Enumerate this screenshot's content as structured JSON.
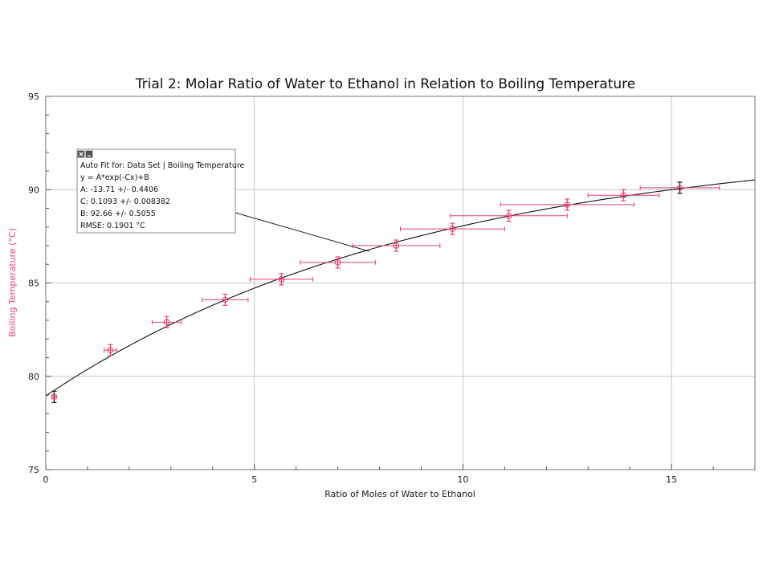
{
  "chart_data": {
    "type": "scatter",
    "title": "Trial 2: Molar Ratio of Water to Ethanol in Relation to Boiling Temperature",
    "xlabel": "Ratio of Moles of Water to Ethanol",
    "ylabel": "Boiling Temperature (°C)",
    "xlim": [
      0,
      17
    ],
    "ylim": [
      75,
      95
    ],
    "xticks": [
      "0",
      "5",
      "10",
      "15"
    ],
    "yticks": [
      "75",
      "80",
      "85",
      "90",
      "95"
    ],
    "grid": true,
    "series": [
      {
        "color": "#e8436a",
        "points": [
          {
            "x": 0.2,
            "y": 78.9,
            "xerr": 0.05,
            "yerr": 0.3
          },
          {
            "x": 1.55,
            "y": 81.4,
            "xerr": 0.15,
            "yerr": 0.3
          },
          {
            "x": 2.9,
            "y": 82.9,
            "xerr": 0.35,
            "yerr": 0.3
          },
          {
            "x": 4.3,
            "y": 84.1,
            "xerr": 0.55,
            "yerr": 0.3
          },
          {
            "x": 5.65,
            "y": 85.2,
            "xerr": 0.75,
            "yerr": 0.3
          },
          {
            "x": 7.0,
            "y": 86.1,
            "xerr": 0.9,
            "yerr": 0.3
          },
          {
            "x": 8.4,
            "y": 87.0,
            "xerr": 1.05,
            "yerr": 0.3
          },
          {
            "x": 9.75,
            "y": 87.9,
            "xerr": 1.25,
            "yerr": 0.3
          },
          {
            "x": 11.1,
            "y": 88.6,
            "xerr": 1.4,
            "yerr": 0.3
          },
          {
            "x": 12.5,
            "y": 89.2,
            "xerr": 1.6,
            "yerr": 0.3
          },
          {
            "x": 13.85,
            "y": 89.7,
            "xerr": 0.85,
            "yerr": 0.3
          },
          {
            "x": 15.2,
            "y": 90.1,
            "xerr": 0.95,
            "yerr": 0.3
          }
        ]
      }
    ],
    "fit": {
      "model": "y = A*exp(-Cx)+B",
      "A": -13.71,
      "C": 0.1093,
      "B": 92.66,
      "color": "#000000",
      "pointer_target": {
        "x": 7.75,
        "y": 86.7
      }
    },
    "fit_box": {
      "lines": [
        "Auto Fit for: Data Set | Boiling Temperature",
        "y = A*exp(-Cx)+B",
        "A: -13.71 +/- 0.4406",
        "C: 0.1093 +/- 0.008382",
        "B: 92.66 +/- 0.5055",
        "RMSE: 0.1901 °C"
      ]
    },
    "ylabel_color": "#e8436a",
    "grid_color": "#c8c8c8"
  }
}
